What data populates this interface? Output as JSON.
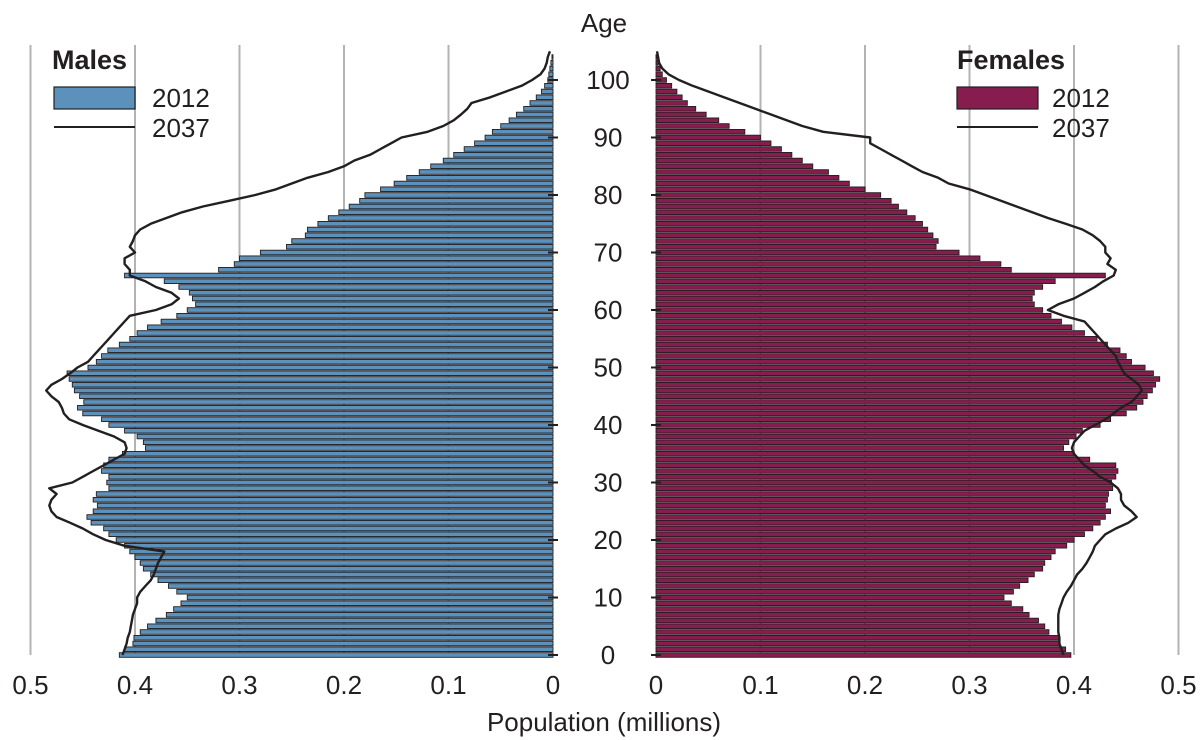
{
  "chart_data": {
    "type": "population-pyramid",
    "xlabel": "Population (millions)",
    "age_label": "Age",
    "xlim": [
      0,
      0.5
    ],
    "x_ticks": [
      "0",
      "0.1",
      "0.2",
      "0.3",
      "0.4",
      "0.5"
    ],
    "age_ticks": [
      "0",
      "10",
      "20",
      "30",
      "40",
      "50",
      "60",
      "70",
      "80",
      "90",
      "100"
    ],
    "ages": [
      0,
      1,
      2,
      3,
      4,
      5,
      6,
      7,
      8,
      9,
      10,
      11,
      12,
      13,
      14,
      15,
      16,
      17,
      18,
      19,
      20,
      21,
      22,
      23,
      24,
      25,
      26,
      27,
      28,
      29,
      30,
      31,
      32,
      33,
      34,
      35,
      36,
      37,
      38,
      39,
      40,
      41,
      42,
      43,
      44,
      45,
      46,
      47,
      48,
      49,
      50,
      51,
      52,
      53,
      54,
      55,
      56,
      57,
      58,
      59,
      60,
      61,
      62,
      63,
      64,
      65,
      66,
      67,
      68,
      69,
      70,
      71,
      72,
      73,
      74,
      75,
      76,
      77,
      78,
      79,
      80,
      81,
      82,
      83,
      84,
      85,
      86,
      87,
      88,
      89,
      90,
      91,
      92,
      93,
      94,
      95,
      96,
      97,
      98,
      99,
      100,
      101,
      102,
      103,
      104,
      105
    ],
    "colors": {
      "males_2012": "#5b91bb",
      "females_2012": "#861d4e",
      "line_2037": "#231f20",
      "grid": "#b3b3b3",
      "bar_edge": "#231f20"
    },
    "panels": [
      {
        "side": "left",
        "title": "Males",
        "series": [
          {
            "name": "2012",
            "kind": "bar",
            "values": [
              0.415,
              0.41,
              0.402,
              0.401,
              0.395,
              0.388,
              0.38,
              0.37,
              0.363,
              0.356,
              0.35,
              0.36,
              0.368,
              0.378,
              0.385,
              0.392,
              0.395,
              0.4,
              0.405,
              0.41,
              0.418,
              0.425,
              0.43,
              0.442,
              0.446,
              0.44,
              0.436,
              0.44,
              0.437,
              0.425,
              0.427,
              0.425,
              0.432,
              0.43,
              0.425,
              0.412,
              0.39,
              0.392,
              0.398,
              0.41,
              0.425,
              0.432,
              0.45,
              0.455,
              0.449,
              0.453,
              0.458,
              0.46,
              0.463,
              0.465,
              0.445,
              0.437,
              0.432,
              0.426,
              0.415,
              0.405,
              0.398,
              0.388,
              0.375,
              0.36,
              0.35,
              0.342,
              0.345,
              0.348,
              0.358,
              0.372,
              0.41,
              0.32,
              0.305,
              0.3,
              0.28,
              0.255,
              0.25,
              0.237,
              0.235,
              0.225,
              0.215,
              0.205,
              0.195,
              0.185,
              0.18,
              0.165,
              0.152,
              0.14,
              0.128,
              0.117,
              0.105,
              0.095,
              0.085,
              0.075,
              0.065,
              0.058,
              0.05,
              0.042,
              0.035,
              0.028,
              0.022,
              0.016,
              0.011,
              0.008,
              0.005,
              0.004,
              0.003,
              0.002,
              0.001,
              0
            ]
          },
          {
            "name": "2037",
            "kind": "line",
            "values": [
              0.412,
              0.41,
              0.408,
              0.407,
              0.405,
              0.404,
              0.403,
              0.402,
              0.4,
              0.398,
              0.398,
              0.395,
              0.39,
              0.385,
              0.382,
              0.38,
              0.378,
              0.375,
              0.372,
              0.41,
              0.428,
              0.44,
              0.45,
              0.462,
              0.475,
              0.48,
              0.482,
              0.48,
              0.475,
              0.482,
              0.46,
              0.45,
              0.44,
              0.43,
              0.42,
              0.41,
              0.408,
              0.41,
              0.42,
              0.435,
              0.45,
              0.463,
              0.468,
              0.47,
              0.473,
              0.48,
              0.485,
              0.48,
              0.47,
              0.462,
              0.455,
              0.445,
              0.44,
              0.435,
              0.43,
              0.425,
              0.42,
              0.415,
              0.41,
              0.405,
              0.38,
              0.365,
              0.358,
              0.365,
              0.38,
              0.39,
              0.405,
              0.405,
              0.41,
              0.41,
              0.4,
              0.405,
              0.402,
              0.4,
              0.395,
              0.385,
              0.37,
              0.355,
              0.335,
              0.31,
              0.285,
              0.265,
              0.25,
              0.235,
              0.215,
              0.2,
              0.19,
              0.175,
              0.165,
              0.155,
              0.145,
              0.12,
              0.105,
              0.095,
              0.088,
              0.082,
              0.078,
              0.06,
              0.045,
              0.03,
              0.02,
              0.012,
              0.008,
              0.006,
              0.005,
              0.003
            ]
          }
        ]
      },
      {
        "side": "right",
        "title": "Females",
        "series": [
          {
            "name": "2012",
            "kind": "bar",
            "values": [
              0.397,
              0.392,
              0.386,
              0.386,
              0.376,
              0.372,
              0.366,
              0.357,
              0.351,
              0.34,
              0.333,
              0.342,
              0.348,
              0.356,
              0.362,
              0.37,
              0.372,
              0.378,
              0.382,
              0.393,
              0.4,
              0.41,
              0.418,
              0.425,
              0.43,
              0.435,
              0.43,
              0.432,
              0.433,
              0.437,
              0.436,
              0.44,
              0.442,
              0.44,
              0.415,
              0.4,
              0.39,
              0.395,
              0.402,
              0.408,
              0.425,
              0.435,
              0.45,
              0.46,
              0.466,
              0.47,
              0.475,
              0.478,
              0.482,
              0.476,
              0.468,
              0.455,
              0.45,
              0.444,
              0.432,
              0.422,
              0.41,
              0.398,
              0.388,
              0.378,
              0.37,
              0.362,
              0.36,
              0.362,
              0.37,
              0.382,
              0.43,
              0.34,
              0.33,
              0.31,
              0.29,
              0.268,
              0.27,
              0.265,
              0.26,
              0.255,
              0.248,
              0.24,
              0.232,
              0.225,
              0.215,
              0.2,
              0.185,
              0.175,
              0.165,
              0.15,
              0.14,
              0.13,
              0.12,
              0.11,
              0.1,
              0.085,
              0.07,
              0.06,
              0.048,
              0.038,
              0.03,
              0.025,
              0.02,
              0.015,
              0.01,
              0.006,
              0.004,
              0.002,
              0.001,
              0
            ]
          },
          {
            "name": "2037",
            "kind": "line",
            "values": [
              0.39,
              0.388,
              0.386,
              0.386,
              0.385,
              0.385,
              0.385,
              0.385,
              0.386,
              0.388,
              0.39,
              0.393,
              0.397,
              0.4,
              0.403,
              0.408,
              0.412,
              0.415,
              0.418,
              0.42,
              0.425,
              0.43,
              0.44,
              0.452,
              0.46,
              0.455,
              0.448,
              0.445,
              0.445,
              0.442,
              0.435,
              0.425,
              0.418,
              0.41,
              0.405,
              0.4,
              0.398,
              0.4,
              0.405,
              0.41,
              0.42,
              0.43,
              0.438,
              0.445,
              0.455,
              0.46,
              0.465,
              0.462,
              0.455,
              0.448,
              0.445,
              0.442,
              0.44,
              0.435,
              0.43,
              0.425,
              0.42,
              0.415,
              0.41,
              0.39,
              0.375,
              0.385,
              0.4,
              0.41,
              0.42,
              0.428,
              0.438,
              0.44,
              0.432,
              0.435,
              0.43,
              0.43,
              0.425,
              0.418,
              0.408,
              0.392,
              0.375,
              0.36,
              0.345,
              0.33,
              0.315,
              0.3,
              0.28,
              0.27,
              0.255,
              0.245,
              0.235,
              0.225,
              0.215,
              0.205,
              0.205,
              0.16,
              0.14,
              0.125,
              0.11,
              0.095,
              0.08,
              0.065,
              0.05,
              0.035,
              0.022,
              0.012,
              0.006,
              0.003,
              0.002,
              0.001
            ]
          }
        ]
      }
    ]
  }
}
